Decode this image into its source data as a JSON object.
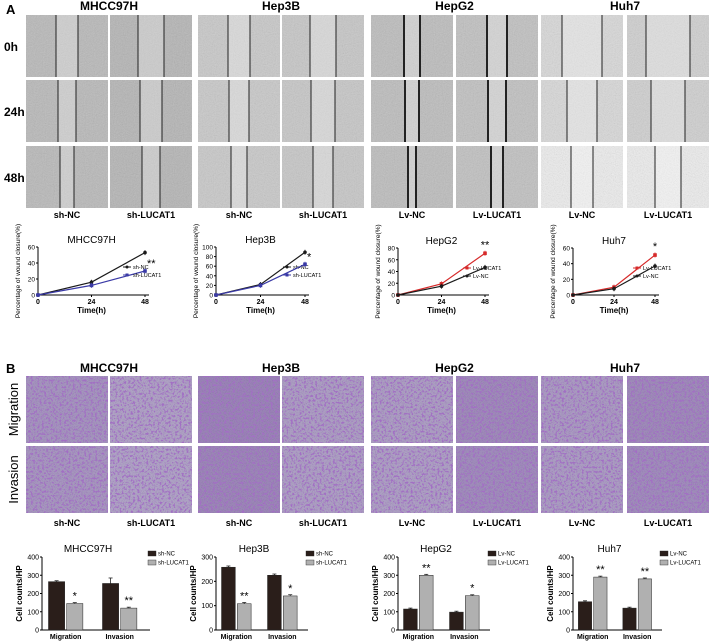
{
  "panels": {
    "A": "A",
    "B": "B"
  },
  "wound": {
    "cell_lines": [
      "MHCC97H",
      "Hep3B",
      "HepG2",
      "Huh7"
    ],
    "row_labels": [
      "0h",
      "24h",
      "48h"
    ],
    "column_labels": [
      "sh-NC",
      "sh-LUCAT1",
      "sh-NC",
      "sh-LUCAT1",
      "Lv-NC",
      "Lv-LUCAT1",
      "Lv-NC",
      "Lv-LUCAT1"
    ]
  },
  "transwell": {
    "cell_lines": [
      "MHCC97H",
      "Hep3B",
      "HepG2",
      "Huh7"
    ],
    "row_labels": [
      "Migration",
      "Invasion"
    ],
    "column_labels": [
      "sh-NC",
      "sh-LUCAT1",
      "sh-NC",
      "sh-LUCAT1",
      "Lv-NC",
      "Lv-LUCAT1",
      "Lv-NC",
      "Lv-LUCAT1"
    ]
  },
  "colors": {
    "black_series": "#1a1a1a",
    "blue_series": "#3a3aa6",
    "red_series": "#d62a2a",
    "bar_dark": "#2a1e1a",
    "bar_light": "#b0b0b0",
    "crystal_violet": "#5b2a8c"
  },
  "chart_data": [
    {
      "type": "line",
      "title": "MHCC97H",
      "xlabel": "Time(h)",
      "ylabel": "Percentage of wound closure(%)",
      "x": [
        0,
        24,
        48
      ],
      "xticks": [
        "0",
        "24",
        "48"
      ],
      "yticks": [
        "0",
        "20",
        "40",
        "60"
      ],
      "ylim": [
        0,
        60
      ],
      "series": [
        {
          "name": "sh-NC",
          "values": [
            0,
            16,
            53
          ]
        },
        {
          "name": "sh-LUCAT1",
          "values": [
            0,
            12,
            30
          ]
        }
      ],
      "annotations": [
        "**"
      ],
      "legend": "inside-right"
    },
    {
      "type": "line",
      "title": "Hep3B",
      "xlabel": "Time(h)",
      "ylabel": "Percentage of wound closure(%)",
      "x": [
        0,
        24,
        48
      ],
      "xticks": [
        "0",
        "24",
        "48"
      ],
      "yticks": [
        "0",
        "20",
        "40",
        "60",
        "80",
        "100"
      ],
      "ylim": [
        0,
        100
      ],
      "series": [
        {
          "name": "sh-NC",
          "values": [
            0,
            22,
            89
          ]
        },
        {
          "name": "sh-LUCAT1",
          "values": [
            0,
            20,
            64
          ]
        }
      ],
      "annotations": [
        "*"
      ],
      "legend": "inside-right"
    },
    {
      "type": "line",
      "title": "HepG2",
      "xlabel": "Time(h)",
      "ylabel": "Percentage of wound closure(%)",
      "x": [
        0,
        24,
        48
      ],
      "xticks": [
        "0",
        "24",
        "48"
      ],
      "yticks": [
        "0",
        "20",
        "40",
        "60",
        "80"
      ],
      "ylim": [
        0,
        80
      ],
      "series": [
        {
          "name": "Lv-LUCAT1",
          "values": [
            0,
            19,
            71
          ]
        },
        {
          "name": "Lv-NC",
          "values": [
            0,
            15,
            47
          ]
        }
      ],
      "annotations": [
        "**"
      ],
      "legend": "inside-right"
    },
    {
      "type": "line",
      "title": "Huh7",
      "xlabel": "Time(h)",
      "ylabel": "Percentage of wound closure(%)",
      "x": [
        0,
        24,
        48
      ],
      "xticks": [
        "0",
        "24",
        "48"
      ],
      "yticks": [
        "0",
        "20",
        "40",
        "60"
      ],
      "ylim": [
        0,
        60
      ],
      "series": [
        {
          "name": "Lv-LUCAT1",
          "values": [
            0,
            10,
            51
          ]
        },
        {
          "name": "Lv-NC",
          "values": [
            0,
            8,
            37
          ]
        }
      ],
      "annotations": [
        "*"
      ],
      "legend": "inside-right"
    },
    {
      "type": "bar",
      "title": "MHCC97H",
      "ylabel": "Cell counts/HP",
      "categories": [
        "Migration",
        "Invasion"
      ],
      "yticks": [
        "0",
        "100",
        "200",
        "300",
        "400"
      ],
      "ylim": [
        0,
        400
      ],
      "series": [
        {
          "name": "sh-NC",
          "values": [
            265,
            255
          ]
        },
        {
          "name": "sh-LUCAT1",
          "values": [
            145,
            120
          ]
        }
      ],
      "annotations": [
        "*",
        "**"
      ],
      "legend": "top-right"
    },
    {
      "type": "bar",
      "title": "Hep3B",
      "ylabel": "Cell counts/HP",
      "categories": [
        "Migration",
        "Invasion"
      ],
      "yticks": [
        "0",
        "100",
        "200",
        "300"
      ],
      "ylim": [
        0,
        300
      ],
      "series": [
        {
          "name": "sh-NC",
          "values": [
            258,
            225
          ]
        },
        {
          "name": "sh-LUCAT1",
          "values": [
            108,
            140
          ]
        }
      ],
      "annotations": [
        "**",
        "*"
      ],
      "legend": "top-right"
    },
    {
      "type": "bar",
      "title": "HepG2",
      "ylabel": "Cell counts/HP",
      "categories": [
        "Migration",
        "Invasion"
      ],
      "yticks": [
        "0",
        "100",
        "200",
        "300",
        "400"
      ],
      "ylim": [
        0,
        400
      ],
      "series": [
        {
          "name": "Lv-NC",
          "values": [
            115,
            98
          ]
        },
        {
          "name": "Lv-LUCAT1",
          "values": [
            300,
            188
          ]
        }
      ],
      "annotations": [
        "**",
        "*"
      ],
      "legend": "top-right"
    },
    {
      "type": "bar",
      "title": "Huh7",
      "ylabel": "Cell counts/HP",
      "categories": [
        "Migration",
        "Invasion"
      ],
      "yticks": [
        "0",
        "100",
        "200",
        "300",
        "400"
      ],
      "ylim": [
        0,
        400
      ],
      "series": [
        {
          "name": "Lv-NC",
          "values": [
            155,
            120
          ]
        },
        {
          "name": "Lv-LUCAT1",
          "values": [
            290,
            280
          ]
        }
      ],
      "annotations": [
        "**",
        "**"
      ],
      "legend": "top-right"
    }
  ]
}
